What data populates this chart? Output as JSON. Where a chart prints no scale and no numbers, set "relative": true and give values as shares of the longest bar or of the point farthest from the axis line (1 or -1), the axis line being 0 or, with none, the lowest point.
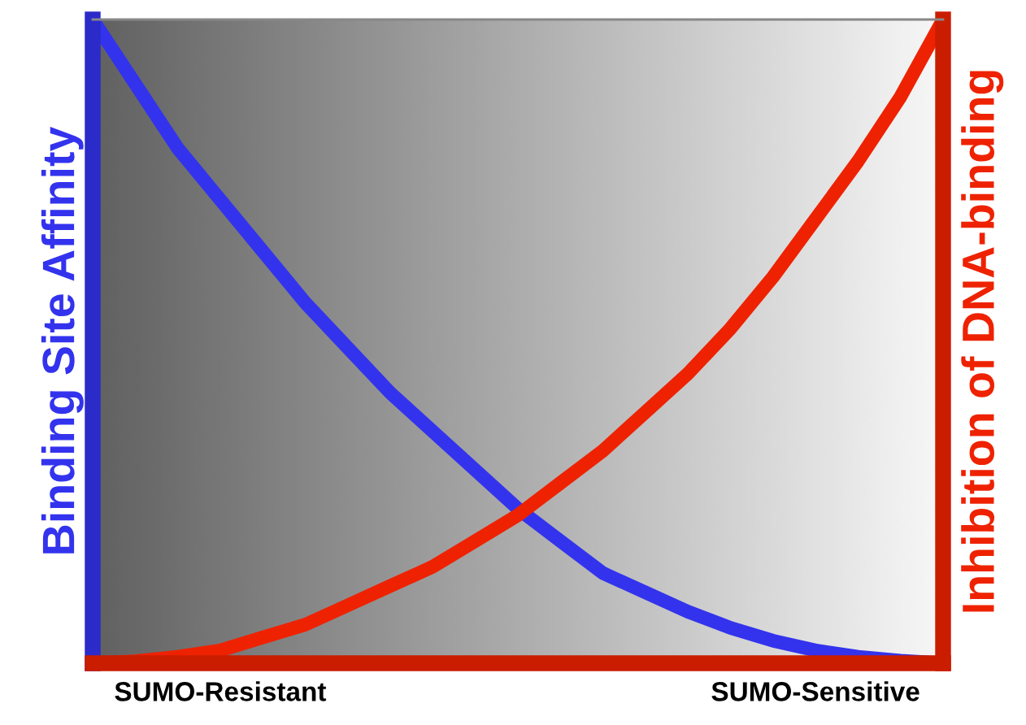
{
  "chart_data": {
    "type": "line",
    "relative": true,
    "ylabel": "Binding Site Affinity",
    "y2label": "Inhibition of DNA-binding",
    "categories": [
      null,
      null,
      null,
      "SUMO-Resistant",
      null,
      null,
      null,
      null,
      null,
      null,
      null,
      null,
      null,
      null,
      null,
      null,
      null,
      "SUMO-Sensitive",
      null,
      null,
      null
    ],
    "series": [
      {
        "color": "#3333ee",
        "values": [
          1,
          0.9,
          0.8,
          0.72,
          0.64,
          0.56,
          0.49,
          0.42,
          0.36,
          0.3,
          0.24,
          0.19,
          0.14,
          0.11,
          0.08,
          0.055,
          0.035,
          0.02,
          0.01,
          0.004,
          0
        ]
      },
      {
        "color": "#ee2200",
        "values": [
          0,
          0.003,
          0.01,
          0.02,
          0.04,
          0.06,
          0.09,
          0.12,
          0.15,
          0.19,
          0.23,
          0.28,
          0.33,
          0.39,
          0.45,
          0.52,
          0.6,
          0.69,
          0.78,
          0.88,
          1
        ]
      }
    ],
    "legend": false,
    "marker": "none",
    "line_style": "solid"
  }
}
